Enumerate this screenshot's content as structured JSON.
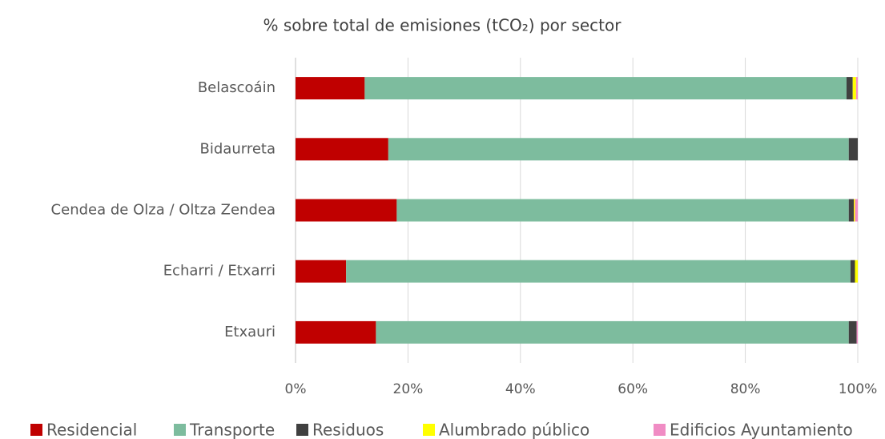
{
  "chart_data": {
    "type": "stacked_barh",
    "title": "% sobre total de emisiones (tCO₂) por sector",
    "categories": [
      "Belascoáin",
      "Bidaurreta",
      "Cendea de Olza / Oltza Zendea",
      "Echarri / Etxarri",
      "Etxauri"
    ],
    "series": [
      {
        "name": "Residencial",
        "color": "#c00000",
        "values": [
          12.3,
          16.5,
          18.0,
          9.0,
          14.3
        ]
      },
      {
        "name": "Transporte",
        "color": "#7dbc9e",
        "values": [
          85.7,
          81.9,
          80.4,
          89.7,
          84.1
        ]
      },
      {
        "name": "Residuos",
        "color": "#404040",
        "values": [
          1.1,
          1.6,
          0.9,
          0.8,
          1.4
        ]
      },
      {
        "name": "Alumbrado público",
        "color": "#ffff00",
        "values": [
          0.6,
          0,
          0.2,
          0.5,
          0
        ]
      },
      {
        "name": "Edificios Ayuntamiento",
        "color": "#f08cc4",
        "values": [
          0.3,
          0,
          0.5,
          0,
          0.2
        ]
      }
    ],
    "xlim": [
      0,
      100
    ],
    "xticks": [
      {
        "value": 0,
        "label": "0%"
      },
      {
        "value": 20,
        "label": "20%"
      },
      {
        "value": 40,
        "label": "40%"
      },
      {
        "value": 60,
        "label": "60%"
      },
      {
        "value": 80,
        "label": "80%"
      },
      {
        "value": 100,
        "label": "100%"
      }
    ],
    "grid": true,
    "legend": "bottom"
  }
}
